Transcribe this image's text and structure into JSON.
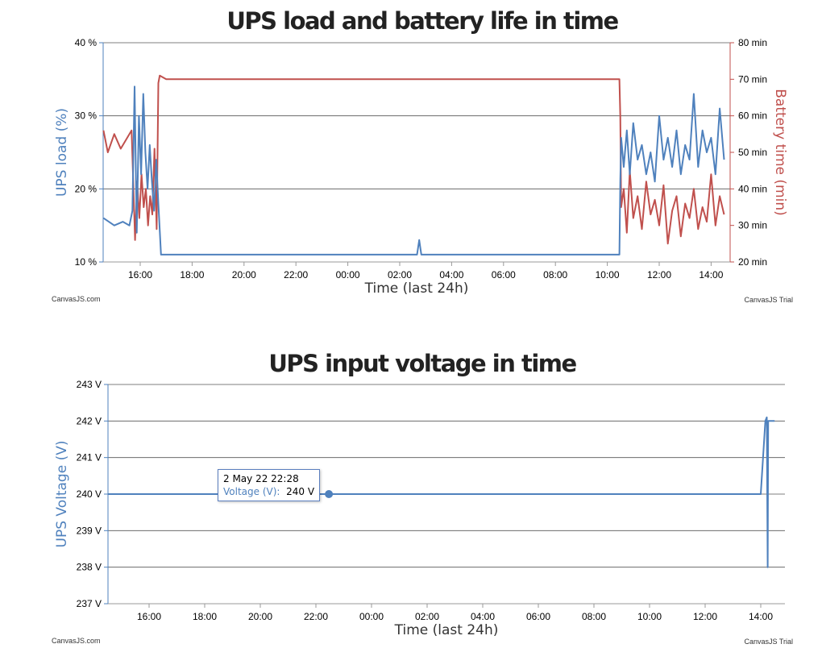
{
  "chart_data": [
    {
      "type": "line",
      "title": "UPS load and battery life in time",
      "xlabel": "Time (last 24h)",
      "x_ticks": [
        "16:00",
        "18:00",
        "20:00",
        "22:00",
        "00:00",
        "02:00",
        "04:00",
        "06:00",
        "08:00",
        "10:00",
        "12:00",
        "14:00"
      ],
      "y_axes": [
        {
          "label": "UPS load (%)",
          "side": "left",
          "ylim": [
            10,
            40
          ],
          "ticks": [
            "10 %",
            "20 %",
            "30 %",
            "40 %"
          ],
          "color": "#4f81bd"
        },
        {
          "label": "Battery time (min)",
          "side": "right",
          "ylim": [
            20,
            80
          ],
          "ticks": [
            "20 min",
            "30 min",
            "40 min",
            "50 min",
            "60 min",
            "70 min",
            "80 min"
          ],
          "color": "#c0504d"
        }
      ],
      "series": [
        {
          "axis": "left",
          "color": "#4f81bd",
          "x": [
            "14:35",
            "15:00",
            "15:20",
            "15:35",
            "15:42",
            "15:47",
            "15:52",
            "15:57",
            "16:02",
            "16:07",
            "16:12",
            "16:17",
            "16:22",
            "16:27",
            "16:32",
            "16:37",
            "16:42",
            "16:48",
            "17:00",
            "20:00",
            "23:00",
            "02:00",
            "02:40",
            "02:45",
            "02:50",
            "03:00",
            "06:00",
            "09:00",
            "10:28",
            "10:30",
            "10:32",
            "10:38",
            "10:45",
            "10:52",
            "11:00",
            "11:10",
            "11:20",
            "11:30",
            "11:40",
            "11:50",
            "12:00",
            "12:10",
            "12:20",
            "12:30",
            "12:40",
            "12:50",
            "13:00",
            "13:10",
            "13:20",
            "13:30",
            "13:40",
            "13:50",
            "14:00",
            "14:10",
            "14:20",
            "14:30"
          ],
          "y": [
            16,
            15,
            15.5,
            15,
            17,
            34,
            14,
            30,
            22,
            33,
            25,
            20,
            26,
            21,
            17,
            24,
            18,
            11,
            11,
            11,
            11,
            11,
            11,
            13,
            11,
            11,
            11,
            11,
            11,
            21,
            27,
            23,
            28,
            22,
            29,
            24,
            26,
            22,
            25,
            21,
            30,
            24,
            27,
            23,
            28,
            22,
            26,
            24,
            33,
            23,
            28,
            25,
            27,
            22,
            31,
            24
          ]
        },
        {
          "axis": "right",
          "color": "#c0504d",
          "x": [
            "14:35",
            "14:45",
            "15:00",
            "15:15",
            "15:30",
            "15:40",
            "15:48",
            "15:53",
            "15:58",
            "16:03",
            "16:08",
            "16:13",
            "16:18",
            "16:23",
            "16:28",
            "16:33",
            "16:38",
            "16:42",
            "16:45",
            "17:00",
            "20:00",
            "23:00",
            "02:00",
            "05:00",
            "08:00",
            "10:28",
            "10:30",
            "10:32",
            "10:38",
            "10:45",
            "10:52",
            "11:00",
            "11:10",
            "11:20",
            "11:30",
            "11:40",
            "11:50",
            "12:00",
            "12:10",
            "12:20",
            "12:30",
            "12:40",
            "12:50",
            "13:00",
            "13:10",
            "13:20",
            "13:30",
            "13:40",
            "13:50",
            "14:00",
            "14:10",
            "14:20",
            "14:30"
          ],
          "y": [
            56,
            50,
            55,
            51,
            54,
            56,
            26,
            42,
            32,
            44,
            35,
            40,
            30,
            38,
            33,
            51,
            29,
            69,
            71,
            70,
            70,
            70,
            70,
            70,
            70,
            70,
            60,
            35,
            40,
            28,
            45,
            32,
            38,
            29,
            42,
            33,
            37,
            30,
            41,
            25,
            34,
            38,
            27,
            36,
            32,
            40,
            29,
            35,
            31,
            44,
            30,
            38,
            33
          ]
        }
      ],
      "credits": {
        "left": "CanvasJS.com",
        "right": "CanvasJS Trial"
      }
    },
    {
      "type": "line",
      "title": "UPS input voltage in time",
      "xlabel": "Time (last 24h)",
      "x_ticks": [
        "16:00",
        "18:00",
        "20:00",
        "22:00",
        "00:00",
        "02:00",
        "04:00",
        "06:00",
        "08:00",
        "10:00",
        "12:00",
        "14:00"
      ],
      "ylabel": "UPS Voltage (V)",
      "ylim": [
        237,
        243
      ],
      "y_ticks": [
        "237 V",
        "238 V",
        "239 V",
        "240 V",
        "241 V",
        "242 V",
        "243 V"
      ],
      "series": [
        {
          "name": "Voltage (V)",
          "color": "#4f81bd",
          "x": [
            "14:30",
            "22:28",
            "14:00",
            "14:10",
            "14:13",
            "14:15",
            "14:16",
            "14:17",
            "14:20",
            "14:30"
          ],
          "y": [
            240,
            240,
            240,
            242,
            242.1,
            238,
            242,
            242,
            242,
            242
          ]
        }
      ],
      "highlight": {
        "x": "22:28",
        "y": 240
      },
      "tooltip": {
        "date": "2 May 22 22:28",
        "label": "Voltage (V):",
        "value": "240 V"
      },
      "credits": {
        "left": "CanvasJS.com",
        "right": "CanvasJS Trial"
      }
    }
  ]
}
